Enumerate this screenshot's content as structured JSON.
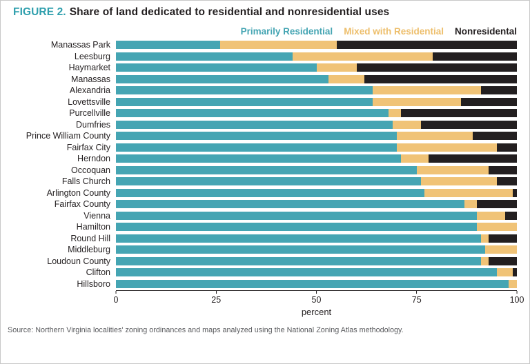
{
  "header": {
    "figure_label": "FIGURE 2.",
    "figure_label_color": "#2F9FAD",
    "title": "Share of land dedicated to residential and nonresidential uses"
  },
  "legend": {
    "items": [
      {
        "label": "Primarily Residential",
        "color": "#45A5B3"
      },
      {
        "label": "Mixed with Residential",
        "color": "#EDBE6B"
      },
      {
        "label": "Nonresidental",
        "color": "#231F20"
      }
    ]
  },
  "chart_data": {
    "type": "bar",
    "orientation": "horizontal",
    "stacked": true,
    "title": "Share of land dedicated to residential and nonresidential uses",
    "xlabel": "percent",
    "ylabel": "",
    "xlim": [
      0,
      100
    ],
    "xticks": [
      0,
      25,
      50,
      75,
      100
    ],
    "grid": false,
    "legend_position": "top-right",
    "categories": [
      "Manassas Park",
      "Leesburg",
      "Haymarket",
      "Manassas",
      "Alexandria",
      "Lovettsville",
      "Purcellville",
      "Dumfries",
      "Prince William County",
      "Fairfax City",
      "Herndon",
      "Occoquan",
      "Falls Church",
      "Arlington County",
      "Fairfax County",
      "Vienna",
      "Hamilton",
      "Round Hill",
      "Middleburg",
      "Loudoun County",
      "Clifton",
      "Hillsboro"
    ],
    "series": [
      {
        "name": "Primarily Residential",
        "key": "primarily-residential",
        "color": "#45A5B3",
        "values": [
          26,
          44,
          50,
          53,
          64,
          64,
          68,
          69,
          70,
          70,
          71,
          75,
          76,
          77,
          87,
          90,
          90,
          91,
          92,
          91,
          95,
          98
        ]
      },
      {
        "name": "Mixed with Residential",
        "key": "mixed-with-residential",
        "color": "#F0C377",
        "values": [
          29,
          35,
          10,
          9,
          27,
          22,
          3,
          7,
          19,
          25,
          7,
          18,
          19,
          22,
          3,
          7,
          10,
          2,
          8,
          2,
          4,
          2
        ]
      },
      {
        "name": "Nonresidental",
        "key": "nonresidential",
        "color": "#231F20",
        "values": [
          45,
          21,
          40,
          38,
          9,
          14,
          29,
          24,
          11,
          5,
          22,
          7,
          5,
          1,
          10,
          3,
          0,
          7,
          0,
          7,
          1,
          0
        ]
      }
    ]
  },
  "footer": {
    "source": "Source: Northern Virginia localities' zoning ordinances and maps analyzed using the National Zoning Atlas methodology."
  }
}
